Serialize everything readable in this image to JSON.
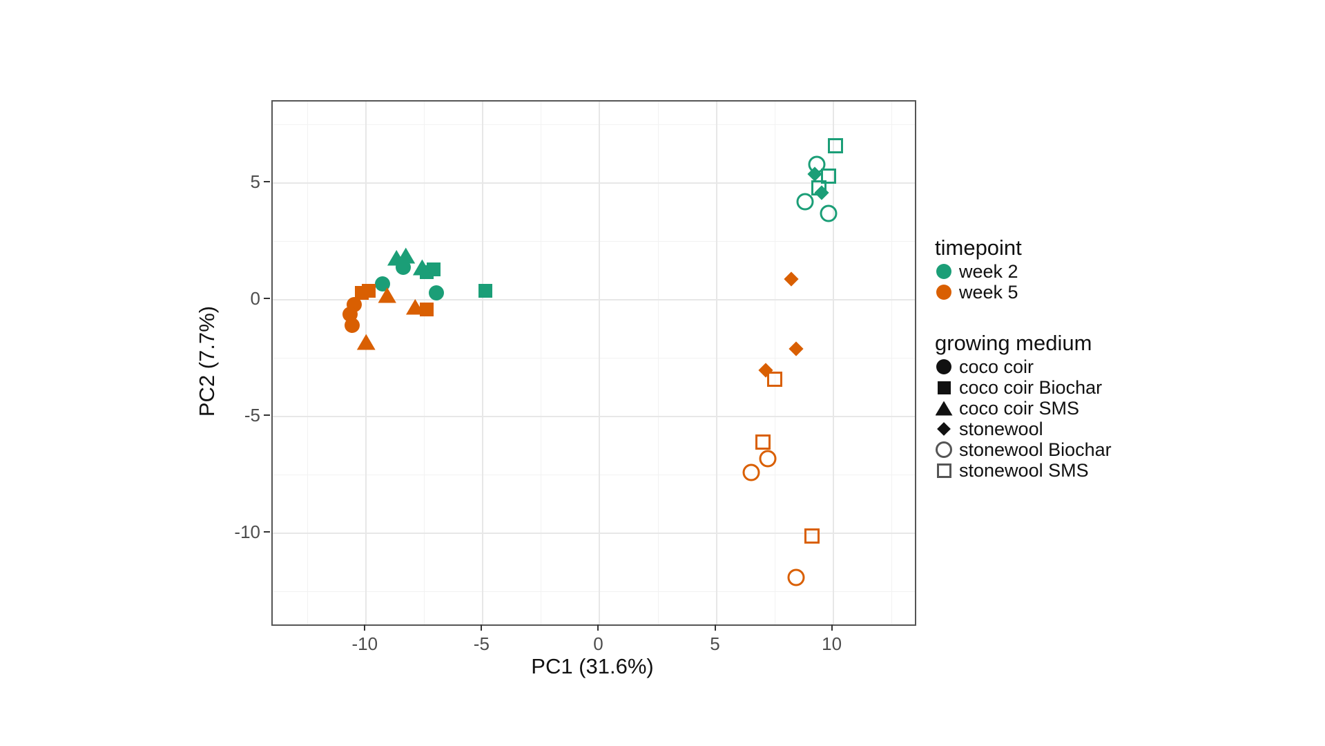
{
  "figure": {
    "background": "#ffffff",
    "panel_border_color": "#555555",
    "grid_major_color": "#e7e7e7",
    "grid_minor_color": "#f2f2f2",
    "tick_label_color": "#4d4d4d",
    "text_color": "#111111"
  },
  "chart_data": {
    "type": "scatter",
    "title": "",
    "xlabel": "PC1 (31.6%)",
    "ylabel": "PC2 (7.7%)",
    "xlim": [
      -14,
      13.5
    ],
    "ylim": [
      -13.9,
      8.5
    ],
    "x_ticks": [
      -10,
      -5,
      0,
      5,
      10
    ],
    "y_ticks": [
      5,
      0,
      -5,
      -10
    ],
    "x_minor": [
      -12.5,
      -7.5,
      -2.5,
      2.5,
      7.5,
      12.5
    ],
    "y_minor": [
      7.5,
      2.5,
      -2.5,
      -7.5,
      -12.5
    ],
    "grid": true,
    "legend_position": "right",
    "series": [
      {
        "name": "week 2 / coco coir",
        "timepoint": "week 2",
        "medium": "coco coir",
        "color": "#1B9E77",
        "shape": "circle",
        "points": [
          [
            -9.3,
            0.7
          ],
          [
            -8.4,
            1.4
          ],
          [
            -7.0,
            0.3
          ]
        ]
      },
      {
        "name": "week 2 / coco coir Biochar",
        "timepoint": "week 2",
        "medium": "coco coir Biochar",
        "color": "#1B9E77",
        "shape": "square",
        "points": [
          [
            -7.4,
            1.2
          ],
          [
            -7.1,
            1.3
          ],
          [
            -4.9,
            0.4
          ]
        ]
      },
      {
        "name": "week 2 / coco coir SMS",
        "timepoint": "week 2",
        "medium": "coco coir SMS",
        "color": "#1B9E77",
        "shape": "triangle",
        "points": [
          [
            -8.7,
            1.8
          ],
          [
            -8.3,
            1.9
          ],
          [
            -7.6,
            1.4
          ]
        ]
      },
      {
        "name": "week 2 / stonewool",
        "timepoint": "week 2",
        "medium": "stonewool",
        "color": "#1B9E77",
        "shape": "diamond",
        "points": [
          [
            9.2,
            5.4
          ],
          [
            9.5,
            4.6
          ]
        ]
      },
      {
        "name": "week 2 / stonewool Biochar",
        "timepoint": "week 2",
        "medium": "stonewool Biochar",
        "color": "#1B9E77",
        "shape": "circle-open",
        "points": [
          [
            9.3,
            5.8
          ],
          [
            8.8,
            4.2
          ],
          [
            9.8,
            3.7
          ]
        ]
      },
      {
        "name": "week 2 / stonewool SMS",
        "timepoint": "week 2",
        "medium": "stonewool SMS",
        "color": "#1B9E77",
        "shape": "square-open",
        "points": [
          [
            10.1,
            6.6
          ],
          [
            9.8,
            5.3
          ],
          [
            9.4,
            4.8
          ]
        ]
      },
      {
        "name": "week 5 / coco coir",
        "timepoint": "week 5",
        "medium": "coco coir",
        "color": "#D95F02",
        "shape": "circle",
        "points": [
          [
            -10.5,
            -0.2
          ],
          [
            -10.7,
            -0.6
          ],
          [
            -10.6,
            -1.1
          ]
        ]
      },
      {
        "name": "week 5 / coco coir Biochar",
        "timepoint": "week 5",
        "medium": "coco coir Biochar",
        "color": "#D95F02",
        "shape": "square",
        "points": [
          [
            -10.2,
            0.3
          ],
          [
            -9.9,
            0.4
          ],
          [
            -7.4,
            -0.4
          ]
        ]
      },
      {
        "name": "week 5 / coco coir SMS",
        "timepoint": "week 5",
        "medium": "coco coir SMS",
        "color": "#D95F02",
        "shape": "triangle",
        "points": [
          [
            -9.1,
            0.2
          ],
          [
            -7.9,
            -0.3
          ],
          [
            -10.0,
            -1.8
          ]
        ]
      },
      {
        "name": "week 5 / stonewool",
        "timepoint": "week 5",
        "medium": "stonewool",
        "color": "#D95F02",
        "shape": "diamond",
        "points": [
          [
            8.2,
            0.9
          ],
          [
            8.4,
            -2.1
          ],
          [
            7.1,
            -3.0
          ]
        ]
      },
      {
        "name": "week 5 / stonewool Biochar",
        "timepoint": "week 5",
        "medium": "stonewool Biochar",
        "color": "#D95F02",
        "shape": "circle-open",
        "points": [
          [
            7.2,
            -6.8
          ],
          [
            6.5,
            -7.4
          ],
          [
            8.4,
            -11.9
          ]
        ]
      },
      {
        "name": "week 5 / stonewool SMS",
        "timepoint": "week 5",
        "medium": "stonewool SMS",
        "color": "#D95F02",
        "shape": "square-open",
        "points": [
          [
            7.5,
            -3.4
          ],
          [
            7.0,
            -6.1
          ],
          [
            9.1,
            -10.1
          ]
        ]
      }
    ]
  },
  "legend": {
    "timepoint": {
      "title": "timepoint",
      "items": [
        {
          "label": "week 2",
          "color": "#1B9E77",
          "shape": "circle"
        },
        {
          "label": "week 5",
          "color": "#D95F02",
          "shape": "circle"
        }
      ]
    },
    "medium": {
      "title": "growing medium",
      "filled_swatch_color": "#111111",
      "open_swatch_color": "#555555",
      "items": [
        {
          "label": "coco coir",
          "shape": "circle"
        },
        {
          "label": "coco coir Biochar",
          "shape": "square"
        },
        {
          "label": "coco coir SMS",
          "shape": "triangle"
        },
        {
          "label": "stonewool",
          "shape": "diamond"
        },
        {
          "label": "stonewool Biochar",
          "shape": "circle-open"
        },
        {
          "label": "stonewool SMS",
          "shape": "square-open"
        }
      ]
    }
  }
}
